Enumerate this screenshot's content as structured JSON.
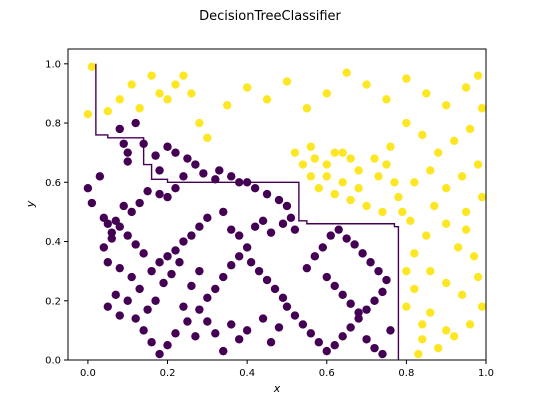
{
  "chart_data": {
    "type": "scatter",
    "title": "DecisionTreeClassifier",
    "xlabel": "x",
    "ylabel": "y",
    "xlim": [
      -0.05,
      1.0
    ],
    "ylim": [
      0.0,
      1.05
    ],
    "x_ticks": [
      "0.0",
      "0.2",
      "0.4",
      "0.6",
      "0.8",
      "1.0"
    ],
    "y_ticks": [
      "0.0",
      "0.2",
      "0.4",
      "0.6",
      "0.8",
      "1.0"
    ],
    "grid": false,
    "legend": "none",
    "colors": {
      "class_0": "#440154",
      "class_1": "#fde725",
      "boundary": "#440154"
    },
    "decision_boundary": [
      [
        0.02,
        1.0
      ],
      [
        0.02,
        0.76
      ],
      [
        0.05,
        0.76
      ],
      [
        0.05,
        0.75
      ],
      [
        0.14,
        0.75
      ],
      [
        0.14,
        0.66
      ],
      [
        0.16,
        0.66
      ],
      [
        0.16,
        0.61
      ],
      [
        0.2,
        0.61
      ],
      [
        0.2,
        0.6
      ],
      [
        0.53,
        0.6
      ],
      [
        0.53,
        0.47
      ],
      [
        0.55,
        0.47
      ],
      [
        0.55,
        0.46
      ],
      [
        0.77,
        0.46
      ],
      [
        0.77,
        0.45
      ],
      [
        0.78,
        0.45
      ],
      [
        0.78,
        0.0
      ]
    ],
    "series": [
      {
        "class": 0,
        "points": [
          [
            0.08,
            0.78
          ],
          [
            0.09,
            0.73
          ],
          [
            0.1,
            0.7
          ],
          [
            0.12,
            0.8
          ],
          [
            0.1,
            0.67
          ],
          [
            0.14,
            0.73
          ],
          [
            0.0,
            0.58
          ],
          [
            0.01,
            0.53
          ],
          [
            0.03,
            0.62
          ],
          [
            0.04,
            0.48
          ],
          [
            0.05,
            0.46
          ],
          [
            0.06,
            0.43
          ],
          [
            0.07,
            0.47
          ],
          [
            0.09,
            0.52
          ],
          [
            0.11,
            0.5
          ],
          [
            0.13,
            0.53
          ],
          [
            0.15,
            0.57
          ],
          [
            0.18,
            0.56
          ],
          [
            0.2,
            0.55
          ],
          [
            0.22,
            0.58
          ],
          [
            0.24,
            0.62
          ],
          [
            0.25,
            0.68
          ],
          [
            0.27,
            0.66
          ],
          [
            0.2,
            0.72
          ],
          [
            0.22,
            0.7
          ],
          [
            0.17,
            0.69
          ],
          [
            0.18,
            0.64
          ],
          [
            0.29,
            0.63
          ],
          [
            0.32,
            0.61
          ],
          [
            0.33,
            0.64
          ],
          [
            0.36,
            0.62
          ],
          [
            0.38,
            0.6
          ],
          [
            0.4,
            0.6
          ],
          [
            0.42,
            0.58
          ],
          [
            0.45,
            0.56
          ],
          [
            0.48,
            0.54
          ],
          [
            0.5,
            0.52
          ],
          [
            0.51,
            0.48
          ],
          [
            0.49,
            0.46
          ],
          [
            0.52,
            0.44
          ],
          [
            0.46,
            0.43
          ],
          [
            0.44,
            0.47
          ],
          [
            0.42,
            0.45
          ],
          [
            0.38,
            0.42
          ],
          [
            0.36,
            0.44
          ],
          [
            0.34,
            0.5
          ],
          [
            0.3,
            0.48
          ],
          [
            0.28,
            0.45
          ],
          [
            0.26,
            0.42
          ],
          [
            0.24,
            0.4
          ],
          [
            0.22,
            0.37
          ],
          [
            0.2,
            0.35
          ],
          [
            0.18,
            0.33
          ],
          [
            0.16,
            0.3
          ],
          [
            0.14,
            0.36
          ],
          [
            0.12,
            0.39
          ],
          [
            0.1,
            0.42
          ],
          [
            0.08,
            0.45
          ],
          [
            0.06,
            0.41
          ],
          [
            0.04,
            0.38
          ],
          [
            0.05,
            0.33
          ],
          [
            0.08,
            0.31
          ],
          [
            0.11,
            0.28
          ],
          [
            0.13,
            0.24
          ],
          [
            0.1,
            0.2
          ],
          [
            0.07,
            0.22
          ],
          [
            0.05,
            0.18
          ],
          [
            0.08,
            0.15
          ],
          [
            0.12,
            0.14
          ],
          [
            0.14,
            0.1
          ],
          [
            0.16,
            0.06
          ],
          [
            0.18,
            0.02
          ],
          [
            0.2,
            0.05
          ],
          [
            0.22,
            0.09
          ],
          [
            0.25,
            0.13
          ],
          [
            0.28,
            0.17
          ],
          [
            0.3,
            0.21
          ],
          [
            0.32,
            0.24
          ],
          [
            0.34,
            0.28
          ],
          [
            0.36,
            0.32
          ],
          [
            0.38,
            0.35
          ],
          [
            0.4,
            0.38
          ],
          [
            0.41,
            0.33
          ],
          [
            0.43,
            0.3
          ],
          [
            0.45,
            0.27
          ],
          [
            0.47,
            0.24
          ],
          [
            0.49,
            0.21
          ],
          [
            0.5,
            0.18
          ],
          [
            0.52,
            0.15
          ],
          [
            0.54,
            0.12
          ],
          [
            0.56,
            0.09
          ],
          [
            0.58,
            0.06
          ],
          [
            0.6,
            0.03
          ],
          [
            0.62,
            0.05
          ],
          [
            0.64,
            0.08
          ],
          [
            0.66,
            0.11
          ],
          [
            0.68,
            0.14
          ],
          [
            0.7,
            0.17
          ],
          [
            0.72,
            0.2
          ],
          [
            0.74,
            0.23
          ],
          [
            0.75,
            0.27
          ],
          [
            0.73,
            0.3
          ],
          [
            0.71,
            0.33
          ],
          [
            0.69,
            0.36
          ],
          [
            0.67,
            0.39
          ],
          [
            0.65,
            0.41
          ],
          [
            0.63,
            0.44
          ],
          [
            0.61,
            0.42
          ],
          [
            0.59,
            0.38
          ],
          [
            0.57,
            0.35
          ],
          [
            0.55,
            0.31
          ],
          [
            0.6,
            0.28
          ],
          [
            0.62,
            0.25
          ],
          [
            0.64,
            0.22
          ],
          [
            0.66,
            0.19
          ],
          [
            0.68,
            0.16
          ],
          [
            0.7,
            0.07
          ],
          [
            0.72,
            0.04
          ],
          [
            0.74,
            0.02
          ],
          [
            0.76,
            0.1
          ],
          [
            0.4,
            0.1
          ],
          [
            0.38,
            0.07
          ],
          [
            0.36,
            0.12
          ],
          [
            0.34,
            0.03
          ],
          [
            0.32,
            0.09
          ],
          [
            0.44,
            0.14
          ],
          [
            0.46,
            0.06
          ],
          [
            0.48,
            0.11
          ],
          [
            0.3,
            0.13
          ],
          [
            0.27,
            0.08
          ],
          [
            0.24,
            0.18
          ],
          [
            0.26,
            0.25
          ],
          [
            0.28,
            0.3
          ],
          [
            0.17,
            0.2
          ],
          [
            0.15,
            0.17
          ],
          [
            0.19,
            0.26
          ],
          [
            0.21,
            0.29
          ],
          [
            0.23,
            0.33
          ]
        ]
      },
      {
        "class": 1,
        "points": [
          [
            0.01,
            0.99
          ],
          [
            0.0,
            0.83
          ],
          [
            0.05,
            0.84
          ],
          [
            0.08,
            0.88
          ],
          [
            0.11,
            0.93
          ],
          [
            0.13,
            0.85
          ],
          [
            0.16,
            0.96
          ],
          [
            0.18,
            0.9
          ],
          [
            0.2,
            0.88
          ],
          [
            0.22,
            0.93
          ],
          [
            0.24,
            0.96
          ],
          [
            0.26,
            0.9
          ],
          [
            0.28,
            0.8
          ],
          [
            0.3,
            0.75
          ],
          [
            0.35,
            0.86
          ],
          [
            0.4,
            0.92
          ],
          [
            0.45,
            0.88
          ],
          [
            0.5,
            0.94
          ],
          [
            0.55,
            0.85
          ],
          [
            0.6,
            0.9
          ],
          [
            0.65,
            0.97
          ],
          [
            0.7,
            0.93
          ],
          [
            0.75,
            0.88
          ],
          [
            0.8,
            0.95
          ],
          [
            0.85,
            0.9
          ],
          [
            0.9,
            0.86
          ],
          [
            0.95,
            0.92
          ],
          [
            0.98,
            0.96
          ],
          [
            0.99,
            0.85
          ],
          [
            0.96,
            0.78
          ],
          [
            0.92,
            0.74
          ],
          [
            0.88,
            0.7
          ],
          [
            0.84,
            0.76
          ],
          [
            0.8,
            0.8
          ],
          [
            0.76,
            0.72
          ],
          [
            0.72,
            0.68
          ],
          [
            0.68,
            0.64
          ],
          [
            0.64,
            0.7
          ],
          [
            0.6,
            0.66
          ],
          [
            0.56,
            0.62
          ],
          [
            0.58,
            0.58
          ],
          [
            0.62,
            0.56
          ],
          [
            0.66,
            0.54
          ],
          [
            0.7,
            0.52
          ],
          [
            0.74,
            0.5
          ],
          [
            0.78,
            0.55
          ],
          [
            0.82,
            0.6
          ],
          [
            0.86,
            0.64
          ],
          [
            0.9,
            0.58
          ],
          [
            0.94,
            0.62
          ],
          [
            0.98,
            0.66
          ],
          [
            0.99,
            0.55
          ],
          [
            0.95,
            0.5
          ],
          [
            0.9,
            0.46
          ],
          [
            0.85,
            0.42
          ],
          [
            0.82,
            0.36
          ],
          [
            0.86,
            0.3
          ],
          [
            0.9,
            0.26
          ],
          [
            0.94,
            0.22
          ],
          [
            0.98,
            0.28
          ],
          [
            0.99,
            0.18
          ],
          [
            0.96,
            0.12
          ],
          [
            0.92,
            0.08
          ],
          [
            0.88,
            0.04
          ],
          [
            0.84,
            0.12
          ],
          [
            0.8,
            0.18
          ],
          [
            0.82,
            0.24
          ],
          [
            0.8,
            0.3
          ],
          [
            0.84,
            0.07
          ],
          [
            0.9,
            0.1
          ],
          [
            0.86,
            0.16
          ],
          [
            0.83,
            0.02
          ],
          [
            0.62,
            0.7
          ],
          [
            0.66,
            0.68
          ],
          [
            0.68,
            0.58
          ],
          [
            0.64,
            0.6
          ],
          [
            0.6,
            0.62
          ],
          [
            0.57,
            0.68
          ],
          [
            0.54,
            0.66
          ],
          [
            0.52,
            0.7
          ],
          [
            0.56,
            0.72
          ],
          [
            0.73,
            0.62
          ],
          [
            0.75,
            0.66
          ],
          [
            0.77,
            0.6
          ],
          [
            0.79,
            0.5
          ],
          [
            0.81,
            0.47
          ],
          [
            0.87,
            0.52
          ],
          [
            0.93,
            0.38
          ],
          [
            0.97,
            0.35
          ],
          [
            0.95,
            0.44
          ]
        ]
      }
    ]
  }
}
